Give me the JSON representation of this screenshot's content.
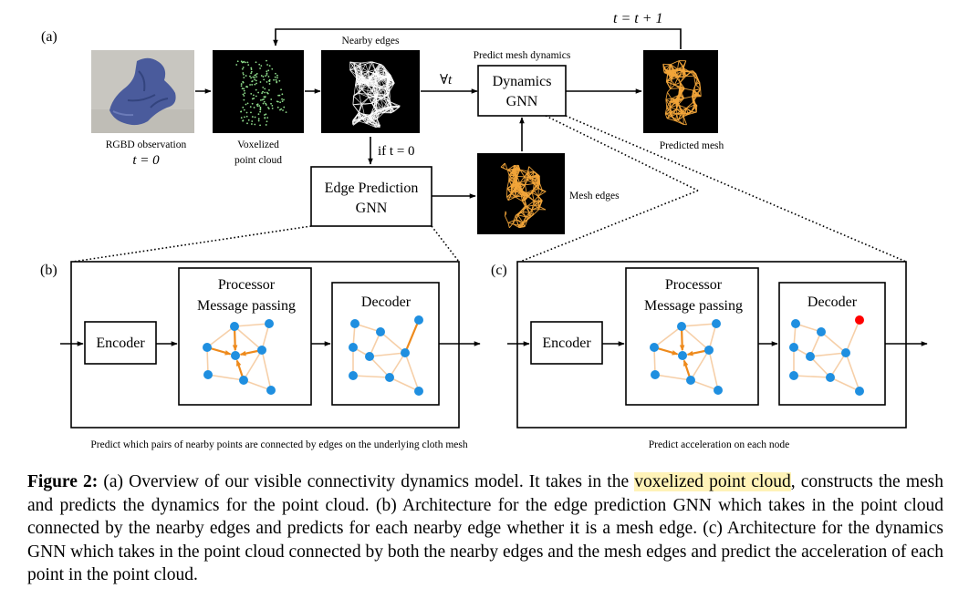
{
  "figure": {
    "panel_a": "(a)",
    "panel_b": "(b)",
    "panel_c": "(c)",
    "loop_label": "t = t + 1",
    "rgbd_label": "RGBD observation",
    "rgbd_time": "t = 0",
    "voxel_label_1": "Voxelized",
    "voxel_label_2": "point cloud",
    "nearby_edges_label": "Nearby edges",
    "forall_label": "∀t",
    "predict_dyn_label": "Predict mesh dynamics",
    "dyn_gnn_line1": "Dynamics",
    "dyn_gnn_line2": "GNN",
    "predicted_mesh_label": "Predicted mesh",
    "if_label": "if t = 0",
    "edge_pred_line1": "Edge Prediction",
    "edge_pred_line2": "GNN",
    "mesh_edges_label": "Mesh edges",
    "encoder_label": "Encoder",
    "processor_line1": "Processor",
    "processor_line2": "Message passing",
    "decoder_label": "Decoder",
    "b_caption": "Predict which pairs of nearby points are connected by edges on the underlying cloth mesh",
    "c_caption": "Predict acceleration on each node"
  },
  "caption": {
    "label": "Figure 2:",
    "text_1": " (a) Overview of our visible connectivity dynamics model. It takes in the ",
    "highlight": "voxelized point cloud",
    "text_2": ", constructs the mesh and predicts the dynamics for the point cloud. (b) Architecture for the edge prediction GNN which takes in the point cloud connected by the nearby edges and predicts for each nearby edge whether it is a mesh edge. (c) Architecture for the dynamics GNN which takes in the point cloud connected by both the nearby edges and the mesh edges and predict the acceleration of each point in the point cloud."
  },
  "colors": {
    "node": "#1f8fe0",
    "edge": "#f6cfa8",
    "highlight_edge": "#ee8a1c",
    "red_node": "#ff0000",
    "photo_bg": "#c8c6c0",
    "cloth": "#4a5b9c"
  }
}
